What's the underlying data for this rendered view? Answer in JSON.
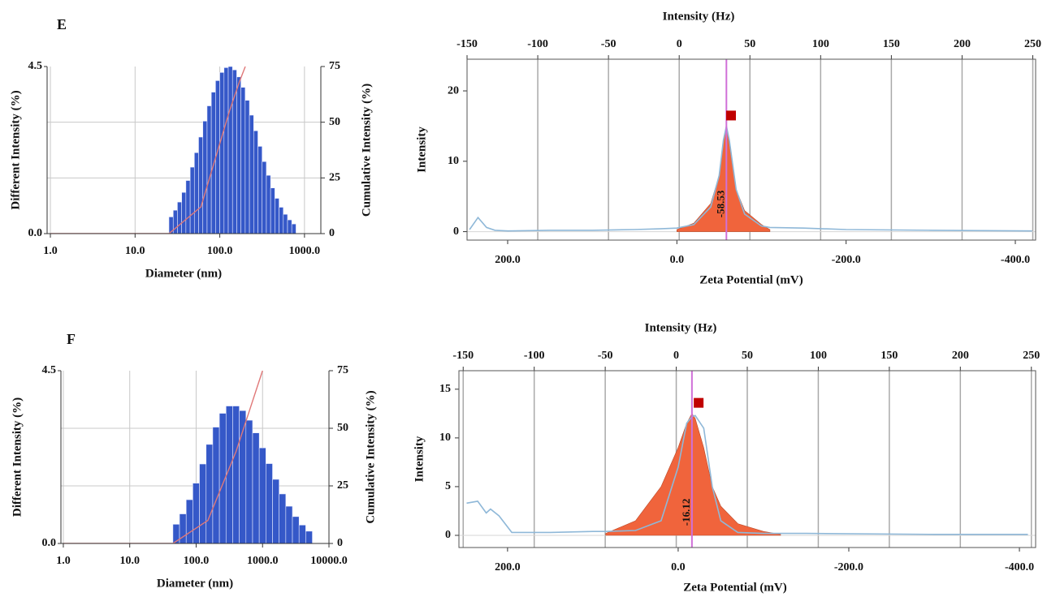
{
  "chart_data": [
    {
      "type": "histogram",
      "panel_label": "E",
      "xlabel": "Diameter (nm)",
      "ylabel": "Different Intensity (%)",
      "y2label": "Cumulative Intensity (%)",
      "xscale": "log",
      "xlim": [
        0.915,
        1560
      ],
      "xticks": [
        {
          "value": 1,
          "label": "1.0"
        },
        {
          "value": 10,
          "label": "10.0"
        },
        {
          "value": 100,
          "label": "100.0"
        },
        {
          "value": 1000,
          "label": "1000.0"
        }
      ],
      "ylim": [
        0,
        4.5
      ],
      "yticks": [
        {
          "value": 0,
          "label": "0.0"
        },
        {
          "value": 4.5,
          "label": "4.5"
        }
      ],
      "y2lim": [
        0,
        75
      ],
      "y2ticks": [
        0,
        25,
        50,
        75
      ],
      "grid": true,
      "color": "#3558c8",
      "bins": [
        25.1,
        28.2,
        31.6,
        35.5,
        39.8,
        44.7,
        50.1,
        56.2,
        63.1,
        70.8,
        79.4,
        89.1,
        100,
        112.2,
        125.9,
        141.3,
        158.5,
        177.8,
        199.5,
        223.9,
        251.2,
        281.8,
        316.2,
        354.8,
        398.1,
        446.7,
        501.2,
        562.3,
        631.0,
        707.9,
        794.3
      ],
      "values": [
        0.45,
        0.63,
        0.85,
        1.11,
        1.43,
        1.79,
        2.18,
        2.6,
        3.03,
        3.44,
        3.81,
        4.12,
        4.34,
        4.47,
        4.5,
        4.41,
        4.22,
        3.94,
        3.59,
        3.19,
        2.77,
        2.35,
        1.94,
        1.57,
        1.23,
        0.95,
        0.71,
        0.52,
        0.37,
        0.26
      ],
      "cumulative": {
        "axis": "y2",
        "color": "#e07878",
        "x": [
          1,
          25.1,
          60,
          130,
          170,
          200
        ],
        "values": [
          0,
          0,
          12,
          55,
          68,
          75
        ]
      }
    },
    {
      "type": "zeta",
      "x2label": "Intensity (Hz)",
      "ylabel": "Intensity",
      "xlabel": "Zeta Potential (mV)",
      "xlim": [
        248,
        -424
      ],
      "xticks": [
        {
          "value": 200,
          "label": "200.0"
        },
        {
          "value": 0,
          "label": "0.0"
        },
        {
          "value": -200,
          "label": "-200.0"
        },
        {
          "value": -400,
          "label": "-400.0"
        }
      ],
      "x2lim": [
        -150,
        252
      ],
      "x2ticks": [
        -150,
        -100,
        -50,
        0,
        50,
        100,
        150,
        200,
        250
      ],
      "ylim": [
        -1.2,
        24.5
      ],
      "yticks": [
        0,
        10,
        20
      ],
      "grid": true,
      "x": [
        245,
        235,
        225,
        215,
        200,
        150,
        100,
        50,
        20,
        0,
        -20,
        -40,
        -50,
        -55,
        -58.53,
        -62,
        -70,
        -80,
        -100,
        -110,
        -150,
        -200,
        -300,
        -420
      ],
      "series": [
        {
          "color": "#f0643c",
          "fill": true,
          "values": [
            null,
            null,
            null,
            null,
            null,
            null,
            null,
            null,
            null,
            0.3,
            1.2,
            4,
            8,
            13,
            15,
            12.5,
            6,
            3,
            1,
            0.3,
            null,
            null,
            null,
            null
          ]
        },
        {
          "color": "#8fb8d8",
          "values": [
            0.3,
            2.0,
            0.6,
            0.2,
            0.1,
            0.2,
            0.2,
            0.3,
            0.4,
            0.5,
            1.0,
            3.5,
            8,
            13,
            15,
            13,
            6,
            2.5,
            0.8,
            0.6,
            0.5,
            0.3,
            0.2,
            0.1
          ]
        }
      ],
      "peak_line": -58.53,
      "peak_color": "#d070d8",
      "annotation": "-58.53",
      "marker": {
        "x": -64,
        "y": 16.5,
        "color": "#c00000"
      }
    },
    {
      "type": "histogram",
      "panel_label": "F",
      "xlabel": "Diameter (nm)",
      "ylabel": "Different Intensity (%)",
      "y2label": "Cumulative Intensity (%)",
      "xscale": "log",
      "xlim": [
        0.92,
        10000
      ],
      "xticks": [
        {
          "value": 1,
          "label": "1.0"
        },
        {
          "value": 10,
          "label": "10.0"
        },
        {
          "value": 100,
          "label": "100.0"
        },
        {
          "value": 1000,
          "label": "1000.0"
        },
        {
          "value": 10000,
          "label": "10000.0"
        }
      ],
      "ylim": [
        0,
        4.5
      ],
      "yticks": [
        {
          "value": 0,
          "label": "0.0"
        },
        {
          "value": 4.5,
          "label": "4.5"
        }
      ],
      "y2lim": [
        0,
        75
      ],
      "y2ticks": [
        0,
        25,
        50,
        75
      ],
      "grid": true,
      "color": "#3558c8",
      "bins": [
        44.7,
        56.2,
        70.8,
        89.1,
        112.2,
        141.3,
        177.8,
        223.9,
        281.8,
        354.8,
        446.7,
        562.3,
        707.9,
        891.3,
        1122,
        1413,
        1778,
        2239,
        2818,
        3548,
        4467,
        5623
      ],
      "values": [
        0.5,
        0.77,
        1.14,
        1.57,
        2.07,
        2.58,
        3.03,
        3.39,
        3.58,
        3.58,
        3.46,
        3.21,
        2.88,
        2.49,
        2.08,
        1.67,
        1.29,
        0.97,
        0.7,
        0.48,
        0.32
      ],
      "cumulative": {
        "axis": "y2",
        "color": "#e07878",
        "x": [
          1,
          44.7,
          150,
          400,
          1000
        ],
        "values": [
          0,
          0,
          10,
          40,
          75
        ]
      }
    },
    {
      "type": "zeta",
      "x2label": "Intensity (Hz)",
      "ylabel": "Intensity",
      "xlabel": "Zeta Potential (mV)",
      "xlim": [
        257,
        -419
      ],
      "xticks": [
        {
          "value": 200,
          "label": "200.0"
        },
        {
          "value": 0,
          "label": "0.0"
        },
        {
          "value": -200,
          "label": "-200.0"
        },
        {
          "value": -400,
          "label": "-400.0"
        }
      ],
      "x2lim": [
        -153,
        253
      ],
      "x2ticks": [
        -150,
        -100,
        -50,
        0,
        50,
        100,
        150,
        200,
        250
      ],
      "ylim": [
        -1.25,
        16.9
      ],
      "yticks": [
        0,
        5,
        10,
        15
      ],
      "grid": true,
      "x": [
        248,
        235,
        225,
        220,
        210,
        195,
        150,
        100,
        85,
        50,
        20,
        0,
        -10,
        -16.12,
        -20,
        -30,
        -40,
        -50,
        -70,
        -100,
        -120,
        -150,
        -300,
        -410
      ],
      "series": [
        {
          "color": "#f0643c",
          "fill": true,
          "values": [
            null,
            null,
            null,
            null,
            null,
            null,
            null,
            null,
            0.2,
            1.5,
            5,
            9,
            11.5,
            12.5,
            12,
            9,
            5,
            3,
            1.2,
            0.4,
            0.1,
            null,
            null,
            null
          ]
        },
        {
          "color": "#8fb8d8",
          "values": [
            3.3,
            3.5,
            2.3,
            2.7,
            2.0,
            0.3,
            0.3,
            0.4,
            0.4,
            0.5,
            1.5,
            7,
            11.5,
            12.2,
            12.3,
            11,
            5,
            1.5,
            0.3,
            0.2,
            0.2,
            0.2,
            0.1,
            0.1
          ]
        }
      ],
      "peak_line": -16.12,
      "peak_color": "#d070d8",
      "annotation": "-16.12",
      "marker": {
        "x": -24,
        "y": 13.6,
        "color": "#c00000"
      }
    }
  ]
}
